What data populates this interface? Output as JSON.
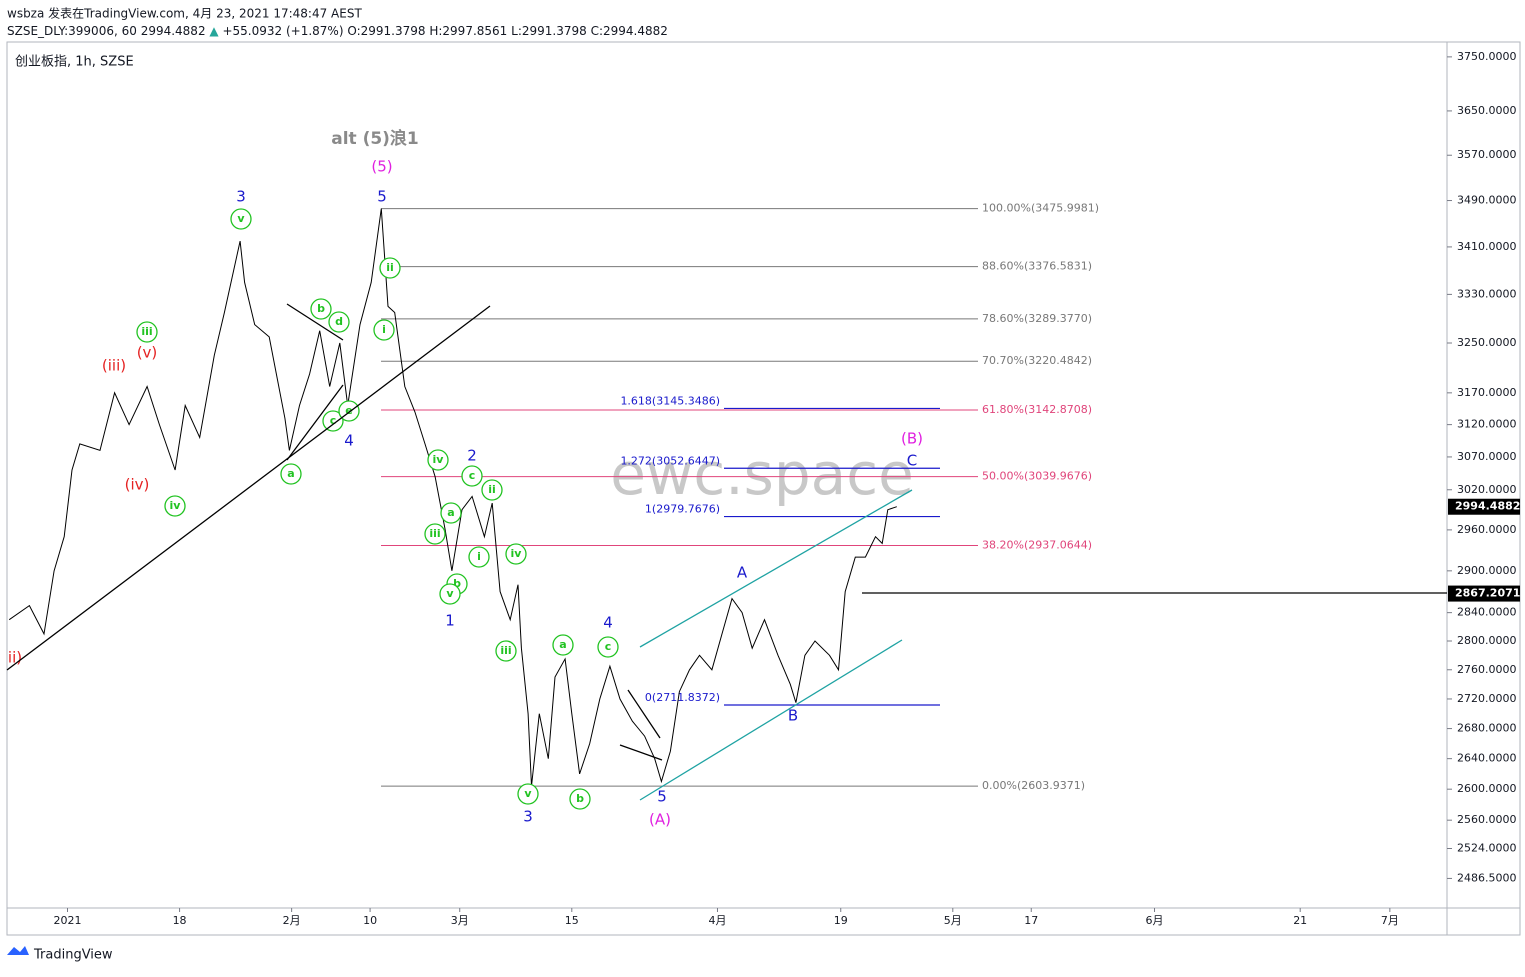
{
  "header": {
    "publisher": "wsbza 发表在TradingView.com, 4月 23, 2021 17:48:47 AEST",
    "ticker": "SZSE_DLY:399006, 60",
    "last": "2994.4882",
    "change": "+55.0932 (+1.87%)",
    "ohlc": [
      "O:2991.3798",
      "H:2997.8561",
      "L:2991.3798",
      "C:2994.4882"
    ]
  },
  "footer": {
    "brand": "TradingView"
  },
  "chart_data": {
    "type": "line",
    "title": "创业板指, 1h, SZSE",
    "watermark": "ewc.space",
    "color": "#000000",
    "log_scale": true,
    "x": [
      -5.2,
      -3.4,
      -2.1,
      -1.2,
      -0.3,
      0.4,
      1.1,
      2.9,
      4.2,
      5.5,
      7.1,
      8.2,
      9.6,
      10.5,
      11.8,
      13.1,
      14.0,
      15.4,
      15.8,
      16.7,
      18.0,
      19.4,
      19.8,
      20.7,
      21.6,
      22.5,
      23.4,
      24.3,
      25.0,
      26.1,
      27.1,
      28.0,
      28.6,
      29.2,
      30.1,
      31.0,
      31.9,
      32.8,
      33.7,
      34.3,
      35.2,
      36.1,
      37.2,
      37.9,
      38.6,
      39.5,
      40.2,
      40.5,
      41.1,
      41.4,
      42.1,
      42.9,
      43.5,
      44.4,
      45.0,
      45.7,
      46.6,
      47.5,
      48.4,
      49.3,
      50.4,
      51.5,
      52.4,
      53.0,
      53.8,
      54.6,
      55.5,
      56.4,
      57.5,
      58.4,
      59.3,
      60.2,
      61.1,
      62.2,
      63.4,
      64.5,
      65.0,
      65.8,
      66.7,
      68.0,
      68.8,
      69.4,
      70.3,
      71.2,
      72.1,
      72.7,
      73.2,
      74.0
    ],
    "values": [
      2830,
      2850,
      2810,
      2900,
      2950,
      3050,
      3090,
      3080,
      3170,
      3120,
      3180,
      3120,
      3050,
      3150,
      3100,
      3230,
      3300,
      3420,
      3350,
      3280,
      3260,
      3130,
      3080,
      3150,
      3200,
      3270,
      3180,
      3250,
      3150,
      3280,
      3350,
      3476,
      3310,
      3300,
      3180,
      3140,
      3090,
      3040,
      2960,
      2900,
      2990,
      3010,
      2950,
      3000,
      2870,
      2830,
      2880,
      2790,
      2700,
      2604,
      2700,
      2640,
      2750,
      2775,
      2700,
      2620,
      2660,
      2720,
      2765,
      2720,
      2690,
      2670,
      2640,
      2610,
      2650,
      2730,
      2760,
      2780,
      2760,
      2810,
      2860,
      2840,
      2790,
      2830,
      2780,
      2740,
      2715,
      2780,
      2800,
      2780,
      2760,
      2870,
      2920,
      2920,
      2950,
      2940,
      2990,
      2994.4882
    ],
    "xlim": [
      -5.4,
      123.1
    ],
    "ylim": [
      2450,
      3778
    ],
    "xticks": [
      {
        "value": 0,
        "label": "2021"
      },
      {
        "value": 10,
        "label": "18"
      },
      {
        "value": 20,
        "label": "2月"
      },
      {
        "value": 27,
        "label": "10"
      },
      {
        "value": 35,
        "label": "3月"
      },
      {
        "value": 45,
        "label": "15"
      },
      {
        "value": 58,
        "label": "4月"
      },
      {
        "value": 69,
        "label": "19"
      },
      {
        "value": 79,
        "label": "5月"
      },
      {
        "value": 86,
        "label": "17"
      },
      {
        "value": 97,
        "label": "6月"
      },
      {
        "value": 110,
        "label": "21"
      },
      {
        "value": 118,
        "label": "7月"
      }
    ],
    "yticks": [
      {
        "value": 3750,
        "label": "3750.0000"
      },
      {
        "value": 3650,
        "label": "3650.0000"
      },
      {
        "value": 3570,
        "label": "3570.0000"
      },
      {
        "value": 3490,
        "label": "3490.0000"
      },
      {
        "value": 3410,
        "label": "3410.0000"
      },
      {
        "value": 3330,
        "label": "3330.0000"
      },
      {
        "value": 3250,
        "label": "3250.0000"
      },
      {
        "value": 3170,
        "label": "3170.0000"
      },
      {
        "value": 3120,
        "label": "3120.0000"
      },
      {
        "value": 3070,
        "label": "3070.0000"
      },
      {
        "value": 3020,
        "label": "3020.0000"
      },
      {
        "value": 2960,
        "label": "2960.0000"
      },
      {
        "value": 2900,
        "label": "2900.0000"
      },
      {
        "value": 2840,
        "label": "2840.0000"
      },
      {
        "value": 2800,
        "label": "2800.0000"
      },
      {
        "value": 2760,
        "label": "2760.0000"
      },
      {
        "value": 2720,
        "label": "2720.0000"
      },
      {
        "value": 2680,
        "label": "2680.0000"
      },
      {
        "value": 2640,
        "label": "2640.0000"
      },
      {
        "value": 2600,
        "label": "2600.0000"
      },
      {
        "value": 2560,
        "label": "2560.0000"
      },
      {
        "value": 2524,
        "label": "2524.0000"
      },
      {
        "value": 2486.5,
        "label": "2486.5000"
      }
    ],
    "fib_levels": [
      {
        "value": 3475.9981,
        "label": "100.00%(3475.9981)",
        "color": "#787878"
      },
      {
        "value": 3376.5831,
        "label": "88.60%(3376.5831)",
        "color": "#787878"
      },
      {
        "value": 3289.377,
        "label": "78.60%(3289.3770)",
        "color": "#787878"
      },
      {
        "value": 3220.4842,
        "label": "70.70%(3220.4842)",
        "color": "#787878"
      },
      {
        "value": 3142.8708,
        "label": "61.80%(3142.8708)",
        "color": "#e0457b"
      },
      {
        "value": 3039.9676,
        "label": "50.00%(3039.9676)",
        "color": "#e0457b"
      },
      {
        "value": 2937.0644,
        "label": "38.20%(2937.0644)",
        "color": "#e0457b"
      },
      {
        "value": 2603.9371,
        "label": "0.00%(2603.9371)",
        "color": "#787878"
      }
    ],
    "extension_levels": [
      {
        "value": 3145.3486,
        "label": "1.618(3145.3486)"
      },
      {
        "value": 3052.6447,
        "label": "1.272(3052.6447)"
      },
      {
        "value": 2979.7676,
        "label": "1(2979.7676)"
      },
      {
        "value": 2711.8372,
        "label": "0(2711.8372)"
      }
    ],
    "extension_color": "#1a1acc",
    "price_tags": [
      {
        "value": 2994.4882,
        "label": "2994.4882"
      },
      {
        "value": 2867.2071,
        "label": "2867.2071"
      }
    ],
    "annotations": [
      {
        "text": "v",
        "color": "#22c322",
        "circled": true
      },
      {
        "text": "iii",
        "color": "#22c322",
        "circled": true
      },
      {
        "text": "iv",
        "color": "#22c322",
        "circled": true
      },
      {
        "text": "b",
        "color": "#22c322",
        "circled": true
      },
      {
        "text": "d",
        "color": "#22c322",
        "circled": true
      },
      {
        "text": "c",
        "color": "#22c322",
        "circled": true
      },
      {
        "text": "e",
        "color": "#22c322",
        "circled": true
      },
      {
        "text": "a",
        "color": "#22c322",
        "circled": true
      },
      {
        "text": "ii",
        "color": "#22c322",
        "circled": true
      },
      {
        "text": "i",
        "color": "#22c322",
        "circled": true
      },
      {
        "text": "iv",
        "color": "#22c322",
        "circled": true
      },
      {
        "text": "a",
        "color": "#22c322",
        "circled": true
      },
      {
        "text": "iii",
        "color": "#22c322",
        "circled": true
      },
      {
        "text": "b",
        "color": "#22c322",
        "circled": true
      },
      {
        "text": "v",
        "color": "#22c322",
        "circled": true
      },
      {
        "text": "c",
        "color": "#22c322",
        "circled": true
      },
      {
        "text": "ii",
        "color": "#22c322",
        "circled": true
      },
      {
        "text": "i",
        "color": "#22c322",
        "circled": true
      },
      {
        "text": "iv",
        "color": "#22c322",
        "circled": true
      },
      {
        "text": "iii",
        "color": "#22c322",
        "circled": true
      },
      {
        "text": "v",
        "color": "#22c322",
        "circled": true
      },
      {
        "text": "a",
        "color": "#22c322",
        "circled": true
      },
      {
        "text": "c",
        "color": "#22c322",
        "circled": true
      },
      {
        "text": "b",
        "color": "#22c322",
        "circled": true
      },
      {
        "text": "3",
        "color": "#1a1acc",
        "circled": false
      },
      {
        "text": "5",
        "color": "#1a1acc",
        "circled": false
      },
      {
        "text": "4",
        "color": "#1a1acc",
        "circled": false
      },
      {
        "text": "2",
        "color": "#1a1acc",
        "circled": false
      },
      {
        "text": "1",
        "color": "#1a1acc",
        "circled": false
      },
      {
        "text": "4",
        "color": "#1a1acc",
        "circled": false
      },
      {
        "text": "3",
        "color": "#1a1acc",
        "circled": false
      },
      {
        "text": "5",
        "color": "#1a1acc",
        "circled": false
      },
      {
        "text": "A",
        "color": "#1a1acc",
        "circled": false
      },
      {
        "text": "B",
        "color": "#1a1acc",
        "circled": false
      },
      {
        "text": "C",
        "color": "#1a1acc",
        "circled": false
      },
      {
        "text": "(iii)",
        "color": "#e52222",
        "circled": false
      },
      {
        "text": "(v)",
        "color": "#e52222",
        "circled": false
      },
      {
        "text": "(iv)",
        "color": "#e52222",
        "circled": false
      },
      {
        "text": "ii)",
        "color": "#e52222",
        "circled": false
      },
      {
        "text": "(5)",
        "color": "#e020e0",
        "circled": false
      },
      {
        "text": "(B)",
        "color": "#e020e0",
        "circled": false
      },
      {
        "text": "(A)",
        "color": "#e020e0",
        "circled": false
      },
      {
        "text": "alt (5)浪1",
        "color": "#8a8a8a",
        "circled": false
      }
    ]
  }
}
